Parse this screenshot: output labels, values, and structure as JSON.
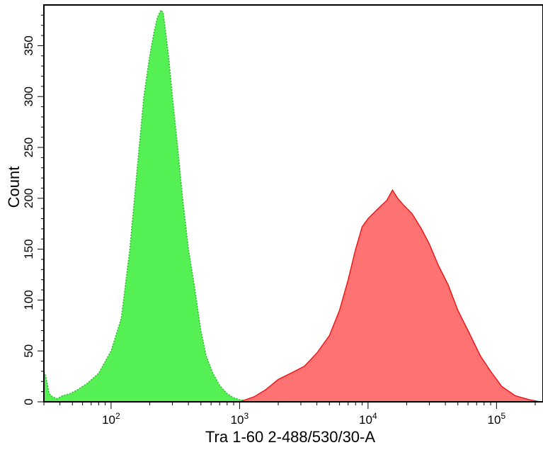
{
  "chart_data": {
    "type": "area",
    "title": "",
    "xlabel": "Tra 1-60 2-488/530/30-A",
    "ylabel": "Count",
    "x_scale": "log",
    "xlim": [
      30,
      230000
    ],
    "ylim": [
      0,
      390
    ],
    "x_ticks": [
      {
        "value": 100,
        "base": "10",
        "exp": "2"
      },
      {
        "value": 1000,
        "base": "10",
        "exp": "3"
      },
      {
        "value": 10000,
        "base": "10",
        "exp": "4"
      },
      {
        "value": 100000,
        "base": "10",
        "exp": "5"
      }
    ],
    "y_ticks": [
      0,
      50,
      100,
      150,
      200,
      250,
      300,
      350
    ],
    "series": [
      {
        "color": "#54f054",
        "edge_color": "#2fbf2f",
        "line_style": "dotted",
        "x": [
          30,
          31,
          33,
          35,
          38,
          42,
          48,
          55,
          65,
          80,
          100,
          120,
          140,
          160,
          180,
          200,
          215,
          230,
          245,
          255,
          265,
          280,
          300,
          330,
          360,
          400,
          450,
          500,
          550,
          620,
          700,
          800,
          900,
          1000,
          1200,
          1500,
          1800,
          2200,
          2800
        ],
        "values": [
          30,
          25,
          8,
          5,
          3,
          6,
          8,
          12,
          18,
          28,
          50,
          82,
          150,
          230,
          300,
          340,
          362,
          378,
          385,
          382,
          365,
          340,
          300,
          250,
          200,
          150,
          110,
          70,
          45,
          28,
          16,
          8,
          4,
          2,
          1,
          1,
          0,
          1,
          0
        ]
      },
      {
        "color": "#ff6a6a",
        "edge_color": "#ee1111",
        "line_style": "solid",
        "x": [
          1000,
          1300,
          1600,
          2000,
          2500,
          3200,
          4000,
          5000,
          6000,
          7000,
          8000,
          9000,
          10000,
          12000,
          14000,
          15500,
          17000,
          19000,
          22000,
          26000,
          30000,
          35000,
          42000,
          50000,
          60000,
          75000,
          90000,
          110000,
          140000,
          180000,
          220000
        ],
        "values": [
          0,
          5,
          12,
          22,
          28,
          35,
          48,
          65,
          90,
          120,
          150,
          172,
          180,
          190,
          198,
          208,
          200,
          193,
          185,
          170,
          155,
          135,
          115,
          90,
          70,
          45,
          30,
          15,
          6,
          2,
          0
        ]
      }
    ],
    "grid": false,
    "legend": "none"
  }
}
